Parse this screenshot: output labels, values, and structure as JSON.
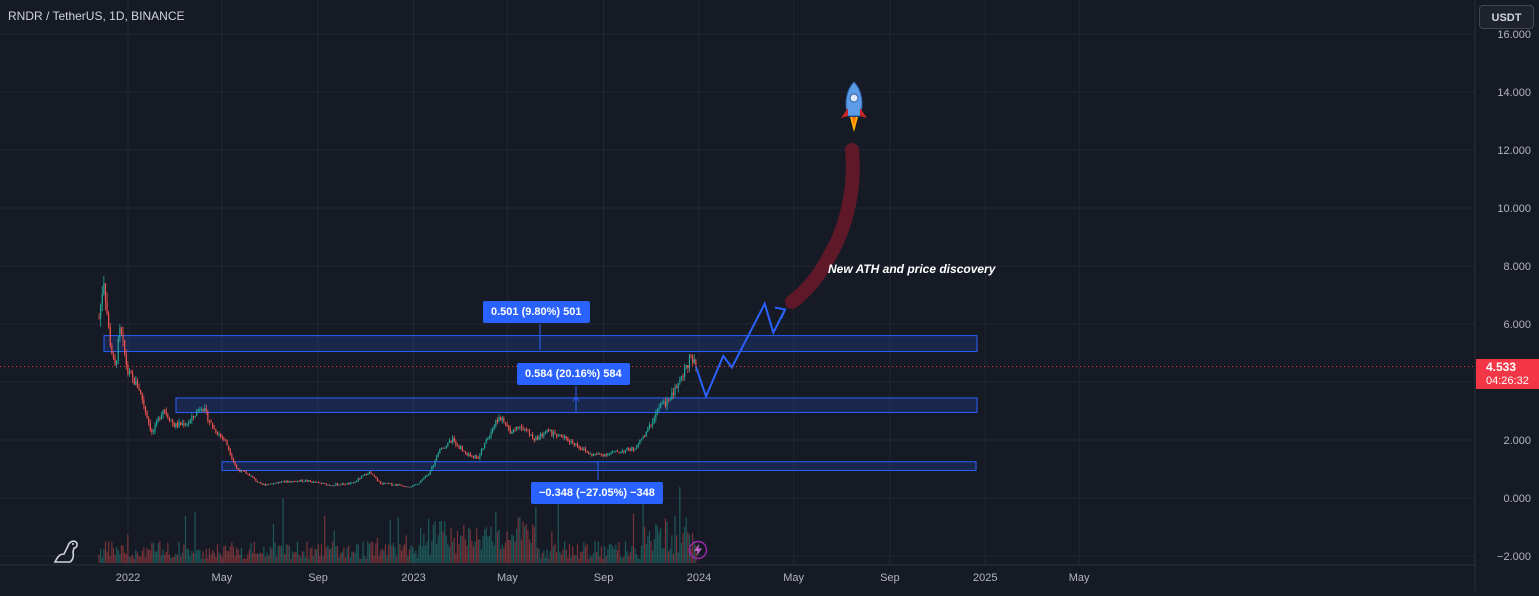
{
  "title": "RNDR / TetherUS, 1D, BINANCE",
  "currency": "USDT",
  "last_price": "4.533",
  "countdown": "04:26:32",
  "annotation": "New ATH and price discovery",
  "measures": [
    {
      "label": "0.501 (9.80%) 501"
    },
    {
      "label": "0.584 (20.16%) 584"
    },
    {
      "label": "−0.348 (−27.05%) −348"
    }
  ],
  "icons": [
    "tradingview-logo-icon",
    "lightning-icon",
    "rocket-icon"
  ],
  "colors": {
    "background": "#161a25",
    "up": "#26a69a",
    "down": "#ef5350",
    "zone": "#2962ff",
    "price_tag": "#f23645"
  },
  "chart_data": {
    "type": "candlestick",
    "title": "RNDR / TetherUS, 1D, BINANCE",
    "y_ticks": [
      "16.000",
      "14.000",
      "12.000",
      "10.000",
      "8.000",
      "6.000",
      "4.000",
      "2.000",
      "0.000",
      "−2.000"
    ],
    "x_ticks": [
      "2022",
      "May",
      "Sep",
      "2023",
      "May",
      "Sep",
      "2024",
      "May",
      "Sep",
      "2025",
      "May"
    ],
    "ylim": [
      -2.3,
      16.5
    ],
    "grid": true,
    "series": [
      {
        "values": [
          [
            "2021-11-25",
            6.2
          ],
          [
            "2021-12-01",
            7.6
          ],
          [
            "2021-12-08",
            5.6
          ],
          [
            "2021-12-15",
            4.4
          ],
          [
            "2021-12-22",
            5.8
          ],
          [
            "2022-01-01",
            4.3
          ],
          [
            "2022-01-15",
            3.8
          ],
          [
            "2022-02-01",
            2.2
          ],
          [
            "2022-02-15",
            3.1
          ],
          [
            "2022-03-01",
            2.5
          ],
          [
            "2022-03-20",
            2.6
          ],
          [
            "2022-04-05",
            3.2
          ],
          [
            "2022-04-20",
            2.4
          ],
          [
            "2022-05-05",
            2.0
          ],
          [
            "2022-05-20",
            1.0
          ],
          [
            "2022-06-05",
            0.8
          ],
          [
            "2022-06-20",
            0.45
          ],
          [
            "2022-07-15",
            0.55
          ],
          [
            "2022-08-15",
            0.6
          ],
          [
            "2022-09-15",
            0.45
          ],
          [
            "2022-10-15",
            0.5
          ],
          [
            "2022-11-05",
            0.9
          ],
          [
            "2022-11-20",
            0.5
          ],
          [
            "2022-12-15",
            0.45
          ],
          [
            "2023-01-01",
            0.4
          ],
          [
            "2023-01-20",
            0.8
          ],
          [
            "2023-02-05",
            1.7
          ],
          [
            "2023-02-20",
            2.0
          ],
          [
            "2023-03-10",
            1.5
          ],
          [
            "2023-03-25",
            1.4
          ],
          [
            "2023-04-10",
            2.3
          ],
          [
            "2023-04-20",
            2.8
          ],
          [
            "2023-05-05",
            2.3
          ],
          [
            "2023-05-20",
            2.5
          ],
          [
            "2023-06-05",
            2.0
          ],
          [
            "2023-06-20",
            2.3
          ],
          [
            "2023-07-10",
            2.1
          ],
          [
            "2023-07-25",
            1.9
          ],
          [
            "2023-08-15",
            1.5
          ],
          [
            "2023-09-01",
            1.5
          ],
          [
            "2023-09-20",
            1.6
          ],
          [
            "2023-10-10",
            1.7
          ],
          [
            "2023-10-25",
            2.2
          ],
          [
            "2023-11-10",
            3.1
          ],
          [
            "2023-11-25",
            3.4
          ],
          [
            "2023-12-10",
            4.2
          ],
          [
            "2023-12-20",
            4.8
          ],
          [
            "2023-12-28",
            4.533
          ]
        ]
      }
    ],
    "zones": [
      {
        "from": 5.05,
        "to": 5.6
      },
      {
        "from": 2.95,
        "to": 3.45
      },
      {
        "from": 0.95,
        "to": 1.25
      }
    ],
    "projection": [
      [
        "2023-12-28",
        4.533
      ],
      [
        "2024-01-10",
        3.5
      ],
      [
        "2024-02-01",
        4.9
      ],
      [
        "2024-02-12",
        4.5
      ],
      [
        "2024-03-25",
        6.7
      ],
      [
        "2024-04-05",
        5.7
      ],
      [
        "2024-04-20",
        6.5
      ]
    ],
    "last_price": 4.533
  }
}
